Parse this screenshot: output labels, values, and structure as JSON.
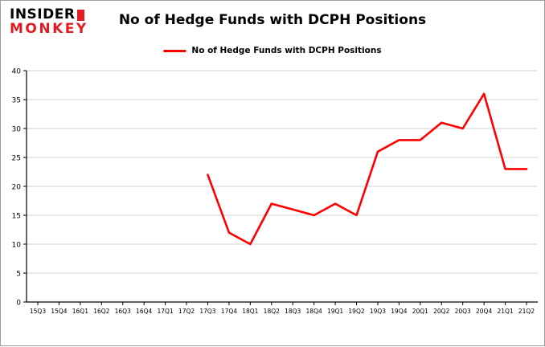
{
  "logo": {
    "line1": "INSIDER",
    "line2": "MONKEY"
  },
  "title": "No of Hedge Funds with DCPH Positions",
  "legend": {
    "label": "No of Hedge Funds with DCPH Positions"
  },
  "colors": {
    "line": "#fe0000",
    "grid": "#d3d3d3",
    "axis": "#000000",
    "tick_text": "#000000",
    "logo_red": "#e31b23"
  },
  "chart_data": {
    "type": "line",
    "title": "No of Hedge Funds with DCPH Positions",
    "xlabel": "",
    "ylabel": "",
    "categories": [
      "15Q3",
      "15Q4",
      "16Q1",
      "16Q2",
      "16Q3",
      "16Q4",
      "17Q1",
      "17Q2",
      "17Q3",
      "17Q4",
      "18Q1",
      "18Q2",
      "18Q3",
      "18Q4",
      "19Q1",
      "19Q2",
      "19Q3",
      "19Q4",
      "20Q1",
      "20Q2",
      "20Q3",
      "20Q4",
      "21Q1",
      "21Q2"
    ],
    "series": [
      {
        "name": "No of Hedge Funds with DCPH Positions",
        "color": "#fe0000",
        "start_index": 8,
        "values": [
          22,
          12,
          10,
          17,
          16,
          15,
          17,
          15,
          26,
          28,
          28,
          31,
          30,
          36,
          23,
          23
        ]
      }
    ],
    "ylim": [
      0,
      40
    ],
    "yticks": [
      0,
      5,
      10,
      15,
      20,
      25,
      30,
      35,
      40
    ],
    "grid": true,
    "legend_position": "top"
  }
}
